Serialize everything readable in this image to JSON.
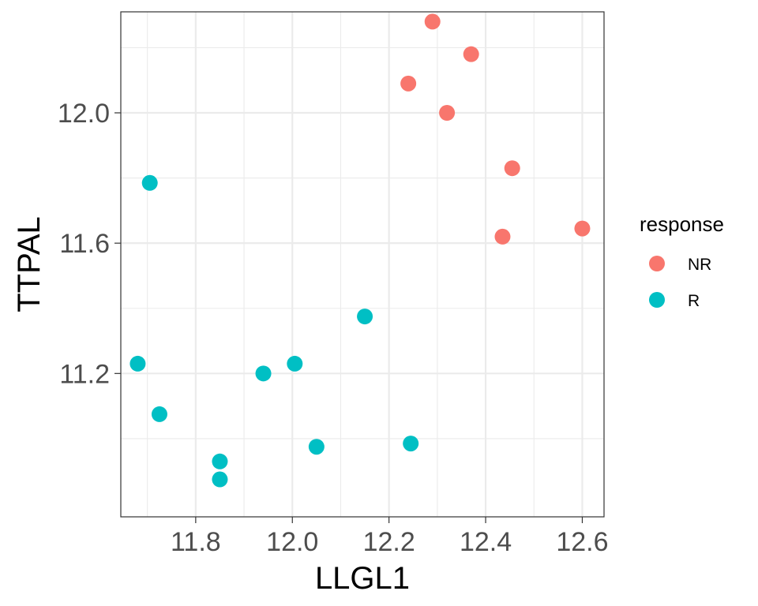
{
  "chart_data": {
    "type": "scatter",
    "xlabel": "LLGL1",
    "ylabel": "TTPAL",
    "xlim": [
      11.645,
      12.645
    ],
    "ylim": [
      10.76,
      12.31
    ],
    "xticks": [
      "11.8",
      "12.0",
      "12.2",
      "12.4",
      "12.6"
    ],
    "yticks": [
      "11.2",
      "11.6",
      "12.0"
    ],
    "grid": true,
    "legend": {
      "title": "response",
      "position": "right"
    },
    "series": [
      {
        "name": "NR",
        "color": "#F8766D",
        "points": [
          {
            "x": 12.29,
            "y": 12.28
          },
          {
            "x": 12.37,
            "y": 12.18
          },
          {
            "x": 12.24,
            "y": 12.09
          },
          {
            "x": 12.32,
            "y": 12.0
          },
          {
            "x": 12.455,
            "y": 11.83
          },
          {
            "x": 12.435,
            "y": 11.62
          },
          {
            "x": 12.6,
            "y": 11.645
          }
        ]
      },
      {
        "name": "R",
        "color": "#00BFC4",
        "points": [
          {
            "x": 11.705,
            "y": 11.785
          },
          {
            "x": 11.68,
            "y": 11.23
          },
          {
            "x": 11.725,
            "y": 11.075
          },
          {
            "x": 11.94,
            "y": 11.2
          },
          {
            "x": 12.005,
            "y": 11.23
          },
          {
            "x": 12.15,
            "y": 11.375
          },
          {
            "x": 12.05,
            "y": 10.975
          },
          {
            "x": 12.245,
            "y": 10.985
          },
          {
            "x": 11.85,
            "y": 10.93
          },
          {
            "x": 11.85,
            "y": 10.875
          }
        ]
      }
    ]
  }
}
